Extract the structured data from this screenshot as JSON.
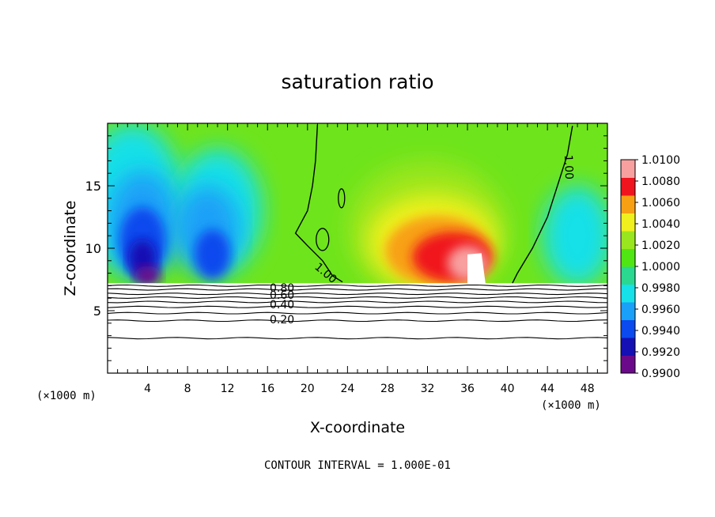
{
  "chart_data": {
    "type": "heatmap",
    "title": "saturation ratio",
    "xlabel": "X-coordinate",
    "ylabel": "Z-coordinate",
    "x_unit": "(×1000 m)",
    "xlim": [
      0,
      50
    ],
    "ylim": [
      0,
      20
    ],
    "x_ticks": [
      4,
      8,
      12,
      16,
      20,
      24,
      28,
      32,
      36,
      40,
      44,
      48
    ],
    "y_ticks": [
      5,
      10,
      15
    ],
    "footer": "CONTOUR INTERVAL = 1.000E-01",
    "colorbar": {
      "min": 0.99,
      "max": 1.01,
      "labels": [
        "1.0100",
        "1.0080",
        "1.0060",
        "1.0040",
        "1.0020",
        "1.0000",
        "0.9980",
        "0.9960",
        "0.9940",
        "0.9920",
        "0.9900"
      ]
    },
    "contour_labels": [
      "1.00",
      "1.00",
      "0.80",
      "0.60",
      "0.40",
      "0.20"
    ],
    "contour_levels_lower": [
      0.9,
      0.8,
      0.7,
      0.6,
      0.5,
      0.4,
      0.3,
      0.2,
      0.1
    ],
    "terrain_top_km": 7.2,
    "colors": {
      "scale": [
        "#6a0a8a",
        "#1410b4",
        "#0a4aee",
        "#1aa0f8",
        "#16e0e8",
        "#2ad890",
        "#50e614",
        "#9ae61e",
        "#f0f01e",
        "#f8a014",
        "#f0141e",
        "#f8a0a0"
      ]
    }
  }
}
